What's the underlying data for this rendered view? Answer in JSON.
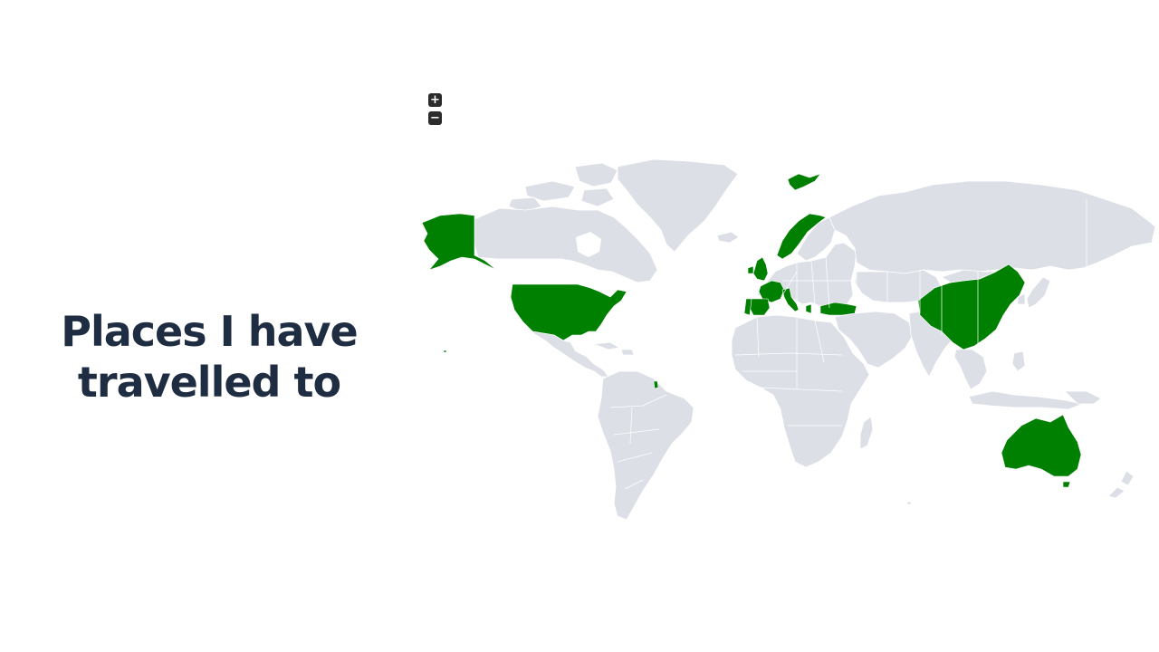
{
  "title": {
    "line1": "Places I have",
    "line2": "travelled to"
  },
  "zoom": {
    "in_label": "+",
    "out_label": "−"
  },
  "colors": {
    "visited": "#008000",
    "land": "#dcdfe6",
    "border": "#ffffff",
    "title": "#1f2d43",
    "control": "#2b2b2b"
  },
  "visited_countries": [
    "United States",
    "Spain",
    "Portugal",
    "France",
    "United Kingdom",
    "Italy",
    "Norway",
    "Svalbard",
    "Turkey",
    "China",
    "Australia",
    "French Guiana"
  ]
}
